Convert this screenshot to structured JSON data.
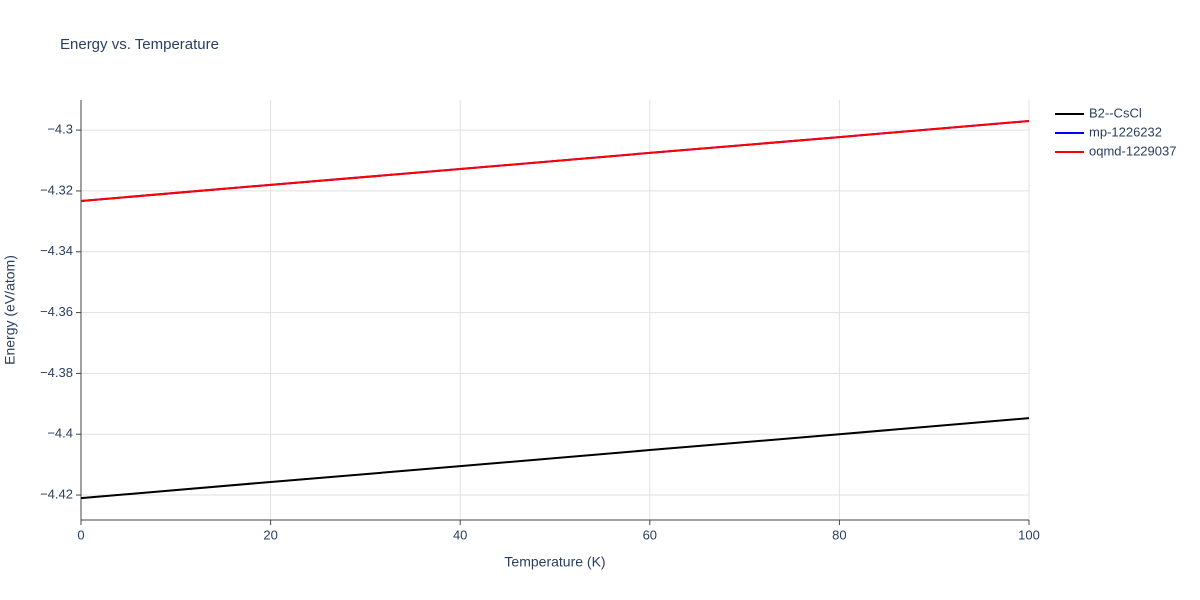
{
  "chart_data": {
    "type": "line",
    "title": "Energy vs. Temperature",
    "x_label": "Temperature (K)",
    "y_label": "Energy (eV/atom)",
    "x": [
      0,
      20,
      40,
      60,
      80,
      100
    ],
    "series": [
      {
        "name": "B2--CsCl",
        "color": "#000000",
        "values": [
          -4.421,
          -4.4157,
          -4.4105,
          -4.4052,
          -4.4,
          -4.3947
        ]
      },
      {
        "name": "mp-1226232",
        "color": "#0000ff",
        "values": [
          -4.3233,
          -4.318,
          -4.3128,
          -4.3075,
          -4.3023,
          -4.297
        ]
      },
      {
        "name": "oqmd-1229037",
        "color": "#ff0000",
        "values": [
          -4.3233,
          -4.318,
          -4.3128,
          -4.3075,
          -4.3023,
          -4.297
        ]
      }
    ],
    "xlim": [
      0,
      100
    ],
    "xticks": [
      0,
      20,
      40,
      60,
      80,
      100
    ],
    "ylim": [
      -4.4282,
      -4.2901
    ],
    "yticks": [
      {
        "value": -4.42,
        "label": "−4.42"
      },
      {
        "value": -4.4,
        "label": "−4.4"
      },
      {
        "value": -4.38,
        "label": "−4.38"
      },
      {
        "value": -4.36,
        "label": "−4.36"
      },
      {
        "value": -4.34,
        "label": "−4.34"
      },
      {
        "value": -4.32,
        "label": "−4.32"
      },
      {
        "value": -4.3,
        "label": "−4.3"
      }
    ],
    "grid": true,
    "legend": "right"
  }
}
